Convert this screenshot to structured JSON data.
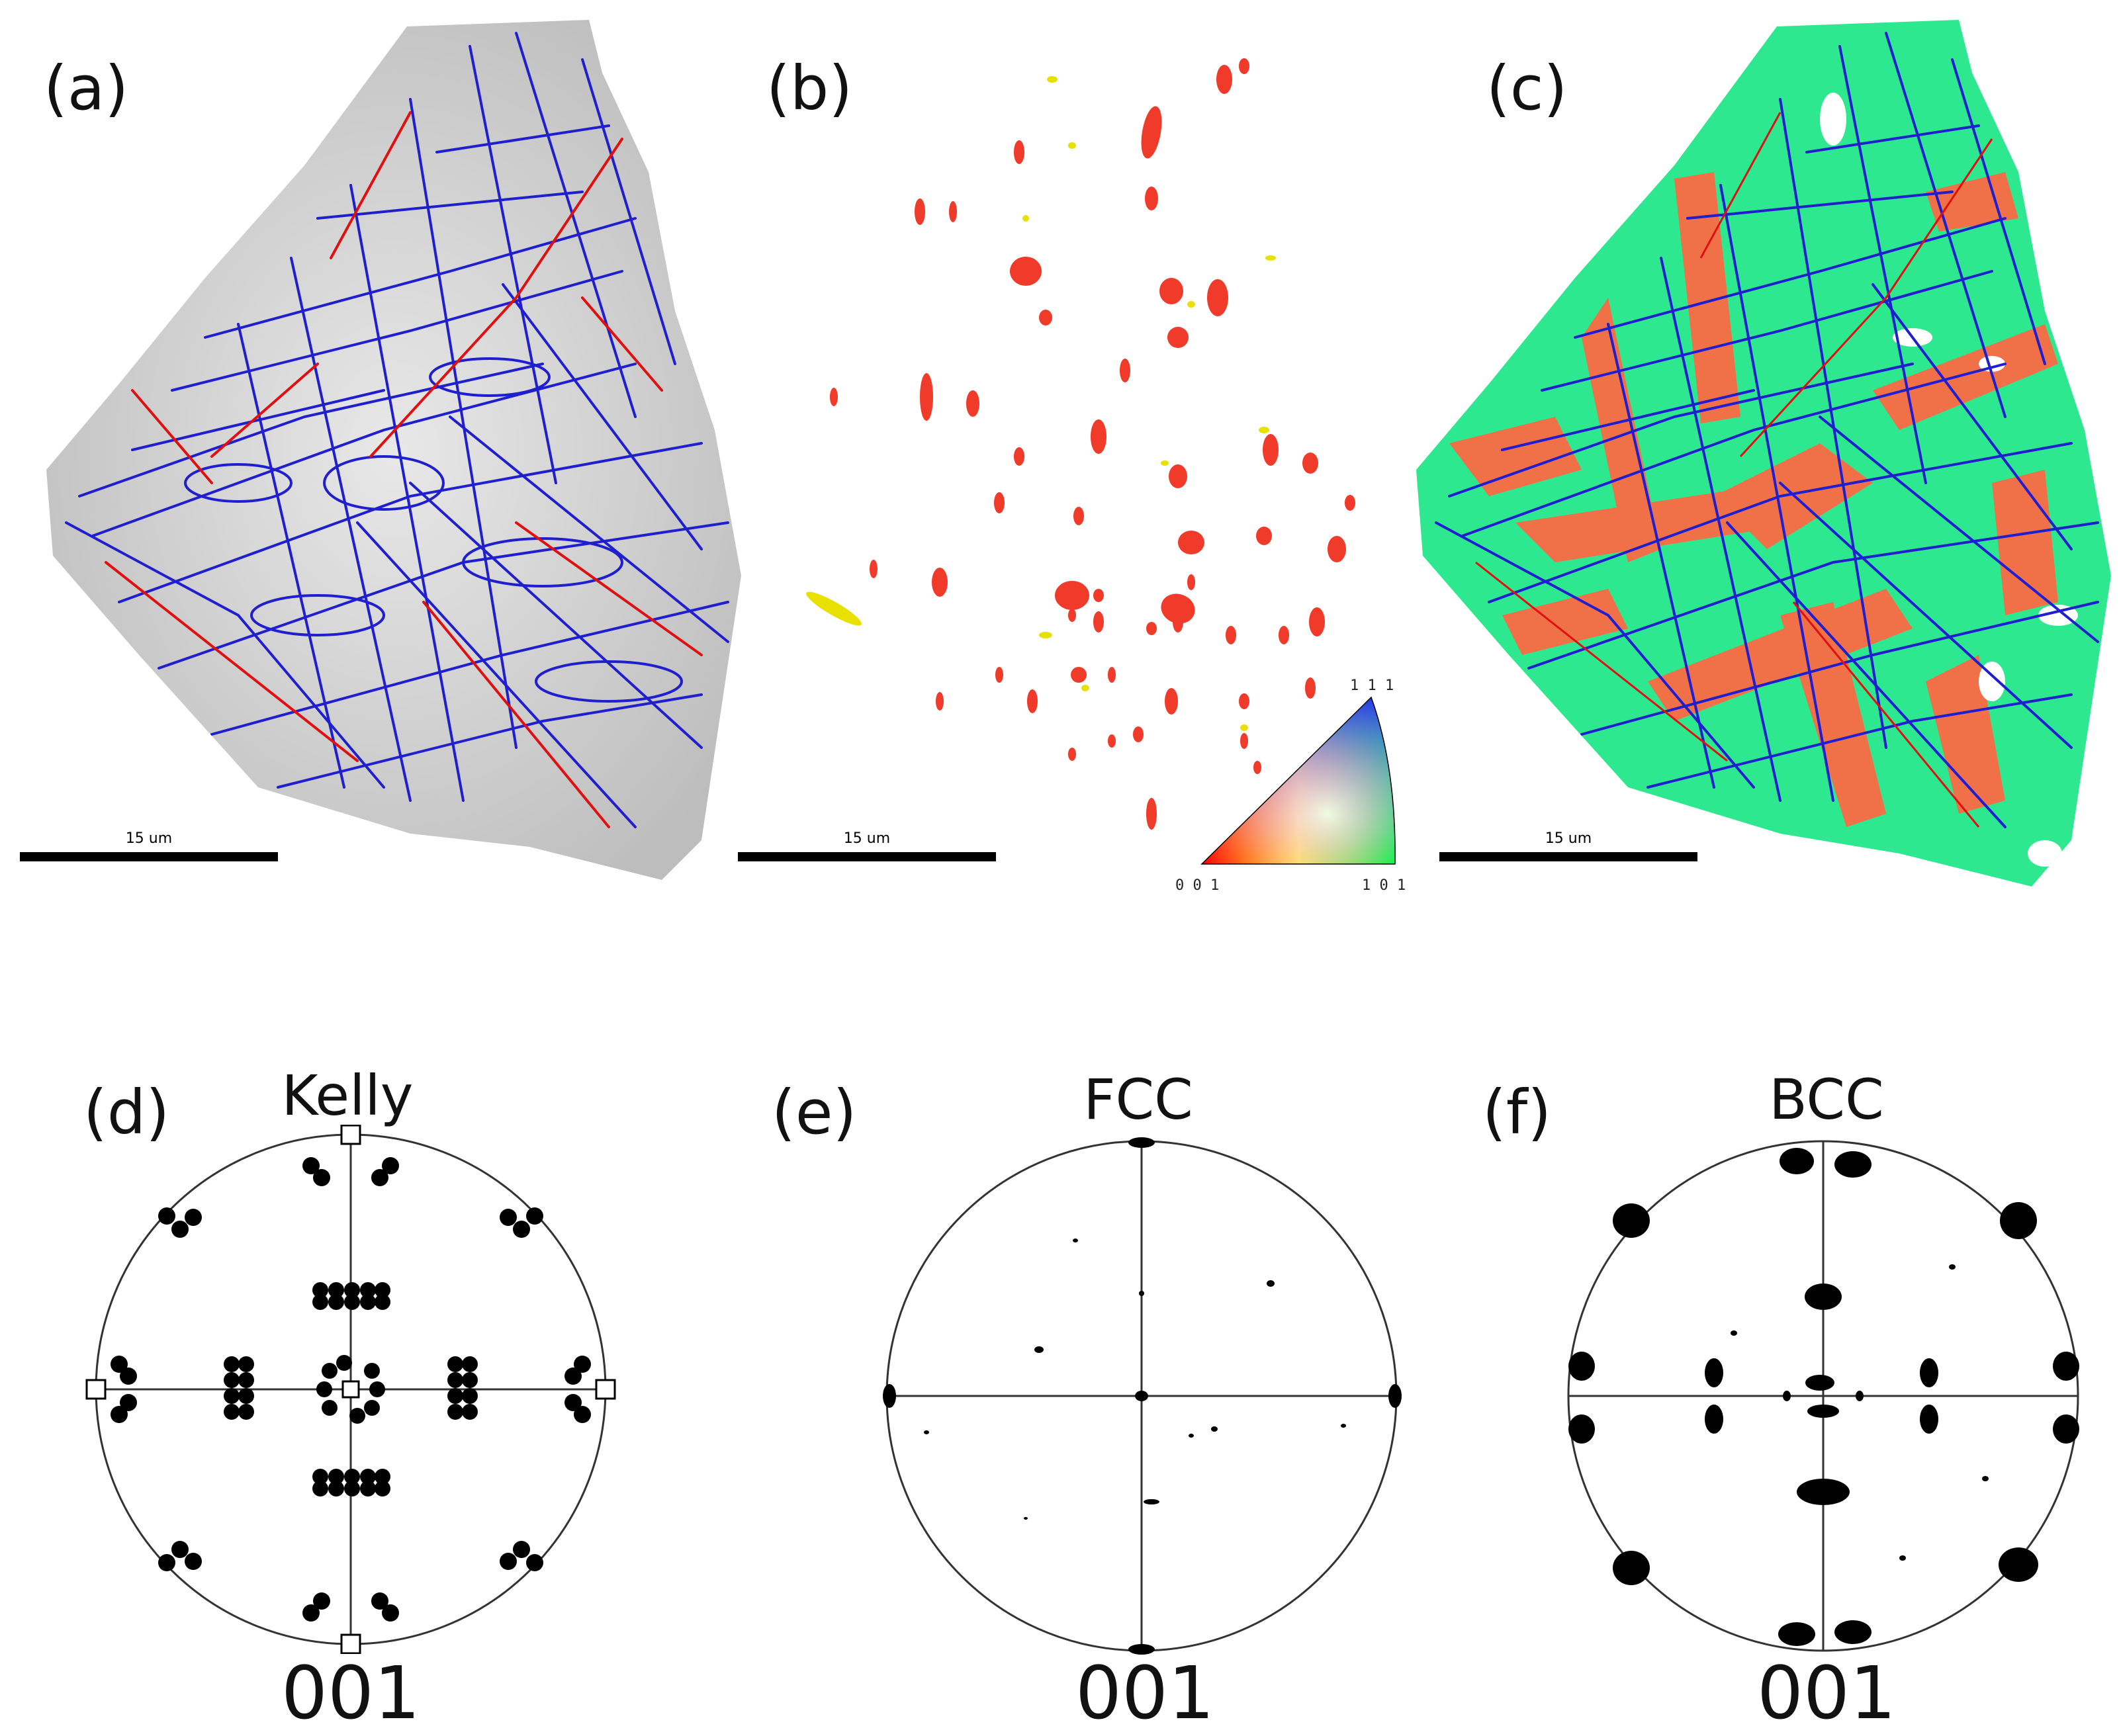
{
  "panels": {
    "a": {
      "label": "(a)",
      "scale": "15 um"
    },
    "b": {
      "label": "(b)",
      "scale": "15 um"
    },
    "c": {
      "label": "(c)",
      "scale": "15 um"
    },
    "d": {
      "label": "(d)",
      "title": "Kelly",
      "bottom": "001"
    },
    "e": {
      "label": "(e)",
      "title": "FCC",
      "bottom": "001"
    },
    "f": {
      "label": "(f)",
      "title": "BCC",
      "bottom": "001"
    }
  },
  "ipf_key": {
    "top": "1 1 1",
    "left": "0 0 1",
    "right": "1 0 1"
  },
  "colors": {
    "grain_boundary_blue": "#1f1fd0",
    "twin_boundary_red": "#e01010",
    "fcc_red": "#f03a2a",
    "yellow": "#e8e000",
    "bcc_green": "#2ee890",
    "fcc_orange": "#f07048"
  }
}
